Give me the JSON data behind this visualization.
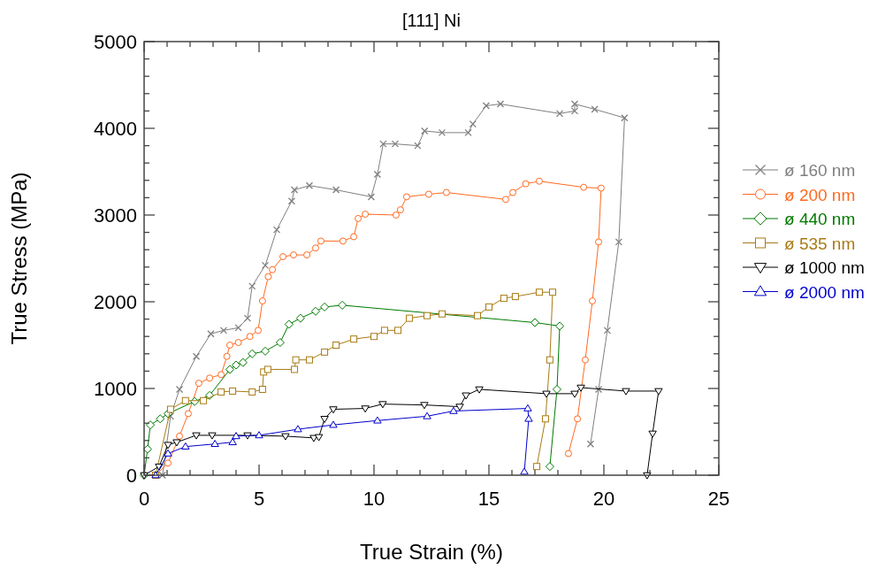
{
  "chart_data": {
    "type": "line",
    "title": "[111] Ni",
    "xlabel": "True Strain (%)",
    "ylabel": "True Stress (MPa)",
    "xlim": [
      0,
      25
    ],
    "ylim": [
      0,
      5000
    ],
    "xticks": [
      0,
      {
        "value": 1,
        "label": null
      },
      {
        "value": 2,
        "label": null
      },
      {
        "value": 3,
        "label": null
      },
      {
        "value": 4,
        "label": null
      },
      5,
      {
        "value": 6,
        "label": null
      },
      {
        "value": 7,
        "label": null
      },
      {
        "value": 8,
        "label": null
      },
      {
        "value": 9,
        "label": null
      },
      10,
      {
        "value": 11,
        "label": null
      },
      {
        "value": 12,
        "label": null
      },
      {
        "value": 13,
        "label": null
      },
      {
        "value": 14,
        "label": null
      },
      15,
      {
        "value": 16,
        "label": null
      },
      {
        "value": 17,
        "label": null
      },
      {
        "value": 18,
        "label": null
      },
      {
        "value": 19,
        "label": null
      },
      20,
      {
        "value": 21,
        "label": null
      },
      {
        "value": 22,
        "label": null
      },
      {
        "value": 23,
        "label": null
      },
      {
        "value": 24,
        "label": null
      },
      25
    ],
    "yticks": [
      0,
      {
        "value": 200,
        "label": null
      },
      {
        "value": 400,
        "label": null
      },
      {
        "value": 600,
        "label": null
      },
      {
        "value": 800,
        "label": null
      },
      1000,
      {
        "value": 1200,
        "label": null
      },
      {
        "value": 1400,
        "label": null
      },
      {
        "value": 1600,
        "label": null
      },
      {
        "value": 1800,
        "label": null
      },
      2000,
      {
        "value": 2200,
        "label": null
      },
      {
        "value": 2400,
        "label": null
      },
      {
        "value": 2600,
        "label": null
      },
      {
        "value": 2800,
        "label": null
      },
      3000,
      {
        "value": 3200,
        "label": null
      },
      {
        "value": 3400,
        "label": null
      },
      {
        "value": 3600,
        "label": null
      },
      {
        "value": 3800,
        "label": null
      },
      4000,
      {
        "value": 4200,
        "label": null
      },
      {
        "value": 4400,
        "label": null
      },
      {
        "value": 4600,
        "label": null
      },
      {
        "value": 4800,
        "label": null
      },
      5000
    ],
    "grid": false,
    "legend": "right",
    "line_style": "solid",
    "series": [
      {
        "name": "ø 160 nm",
        "color": "#7f7f7f",
        "marker": "cross",
        "x": [
          0.8,
          1.15,
          1.54,
          2.27,
          2.9,
          3.46,
          4.1,
          4.5,
          4.7,
          5.27,
          5.77,
          6.42,
          6.54,
          7.19,
          8.35,
          9.88,
          10.15,
          10.4,
          10.92,
          11.9,
          12.2,
          12.96,
          14.1,
          14.3,
          14.88,
          15.5,
          18.08,
          18.73,
          18.73,
          19.6,
          20.9,
          20.65,
          20.15,
          19.77,
          19.42
        ],
        "values": [
          0,
          680,
          990,
          1370,
          1630,
          1670,
          1700,
          1810,
          2180,
          2420,
          2830,
          3160,
          3290,
          3340,
          3290,
          3210,
          3470,
          3820,
          3820,
          3800,
          3970,
          3950,
          3950,
          4050,
          4260,
          4280,
          4170,
          4200,
          4280,
          4220,
          4120,
          2690,
          1670,
          990,
          360
        ]
      },
      {
        "name": "ø 200 nm",
        "color": "#ff6a1f",
        "marker": "circle",
        "x": [
          0.5,
          1.04,
          1.54,
          1.92,
          2.38,
          2.85,
          3.35,
          3.6,
          3.73,
          4.1,
          4.6,
          4.96,
          5.15,
          5.4,
          5.58,
          6.04,
          6.5,
          7.08,
          7.46,
          7.69,
          8.65,
          9.12,
          9.31,
          9.62,
          10.96,
          11.15,
          11.42,
          12.38,
          13.15,
          15.73,
          16.04,
          16.6,
          17.19,
          19.12,
          19.88,
          19.77,
          19.5,
          19.19,
          18.85,
          18.46
        ],
        "values": [
          0,
          140,
          450,
          710,
          1060,
          1120,
          1160,
          1370,
          1500,
          1530,
          1600,
          1670,
          2010,
          2290,
          2370,
          2520,
          2540,
          2540,
          2620,
          2700,
          2700,
          2750,
          2960,
          3010,
          3000,
          3060,
          3210,
          3240,
          3260,
          3180,
          3260,
          3360,
          3390,
          3320,
          3310,
          2690,
          2010,
          1330,
          650,
          250
        ]
      },
      {
        "name": "ø 440 nm",
        "color": "#007a00",
        "marker": "diamond",
        "x": [
          0,
          0.15,
          0.27,
          0.7,
          1.04,
          2.2,
          2.85,
          3.73,
          4.0,
          4.3,
          4.7,
          5.27,
          5.92,
          6.3,
          6.8,
          7.46,
          7.85,
          8.62,
          17.0,
          18.08,
          17.96,
          17.65
        ],
        "values": [
          0,
          300,
          580,
          650,
          710,
          850,
          920,
          1220,
          1270,
          1300,
          1400,
          1430,
          1530,
          1740,
          1810,
          1890,
          1940,
          1960,
          1760,
          1720,
          990,
          100
        ]
      },
      {
        "name": "ø 535 nm",
        "color": "#a87b14",
        "marker": "square",
        "x": [
          0.5,
          1.15,
          1.8,
          2.58,
          3.35,
          3.85,
          4.7,
          5.15,
          5.2,
          5.38,
          6.54,
          6.6,
          7.19,
          7.85,
          8.35,
          9.12,
          10.0,
          10.46,
          11.04,
          11.54,
          12.31,
          12.96,
          14.5,
          15.0,
          15.65,
          16.15,
          17.19,
          17.77,
          17.65,
          17.46,
          17.08
        ],
        "values": [
          0,
          760,
          860,
          860,
          960,
          970,
          960,
          990,
          1190,
          1220,
          1220,
          1330,
          1330,
          1420,
          1500,
          1570,
          1600,
          1670,
          1670,
          1810,
          1840,
          1860,
          1840,
          1940,
          2040,
          2060,
          2110,
          2110,
          1330,
          650,
          100
        ]
      },
      {
        "name": "ø 1000 nm",
        "color": "#000000",
        "marker": "triangle-down",
        "x": [
          0,
          0.65,
          1.04,
          1.42,
          2.27,
          2.96,
          4.5,
          6.15,
          7.38,
          7.6,
          7.85,
          8.23,
          9.62,
          10.38,
          12.19,
          13.73,
          14.0,
          14.58,
          17.5,
          18.73,
          19.0,
          20.96,
          22.38,
          22.12,
          21.88
        ],
        "values": [
          0,
          100,
          350,
          380,
          460,
          460,
          460,
          450,
          430,
          440,
          650,
          760,
          770,
          820,
          810,
          790,
          920,
          990,
          940,
          940,
          1010,
          970,
          970,
          480,
          0
        ]
      },
      {
        "name": "ø 2000 nm",
        "color": "#0000cc",
        "marker": "triangle",
        "x": [
          0.5,
          1.04,
          1.8,
          3.08,
          3.85,
          4.0,
          5.0,
          6.69,
          8.23,
          10.15,
          12.31,
          13.46,
          16.69,
          16.73,
          16.54
        ],
        "values": [
          0,
          250,
          330,
          360,
          380,
          450,
          460,
          530,
          580,
          630,
          680,
          740,
          770,
          650,
          40
        ]
      }
    ]
  }
}
